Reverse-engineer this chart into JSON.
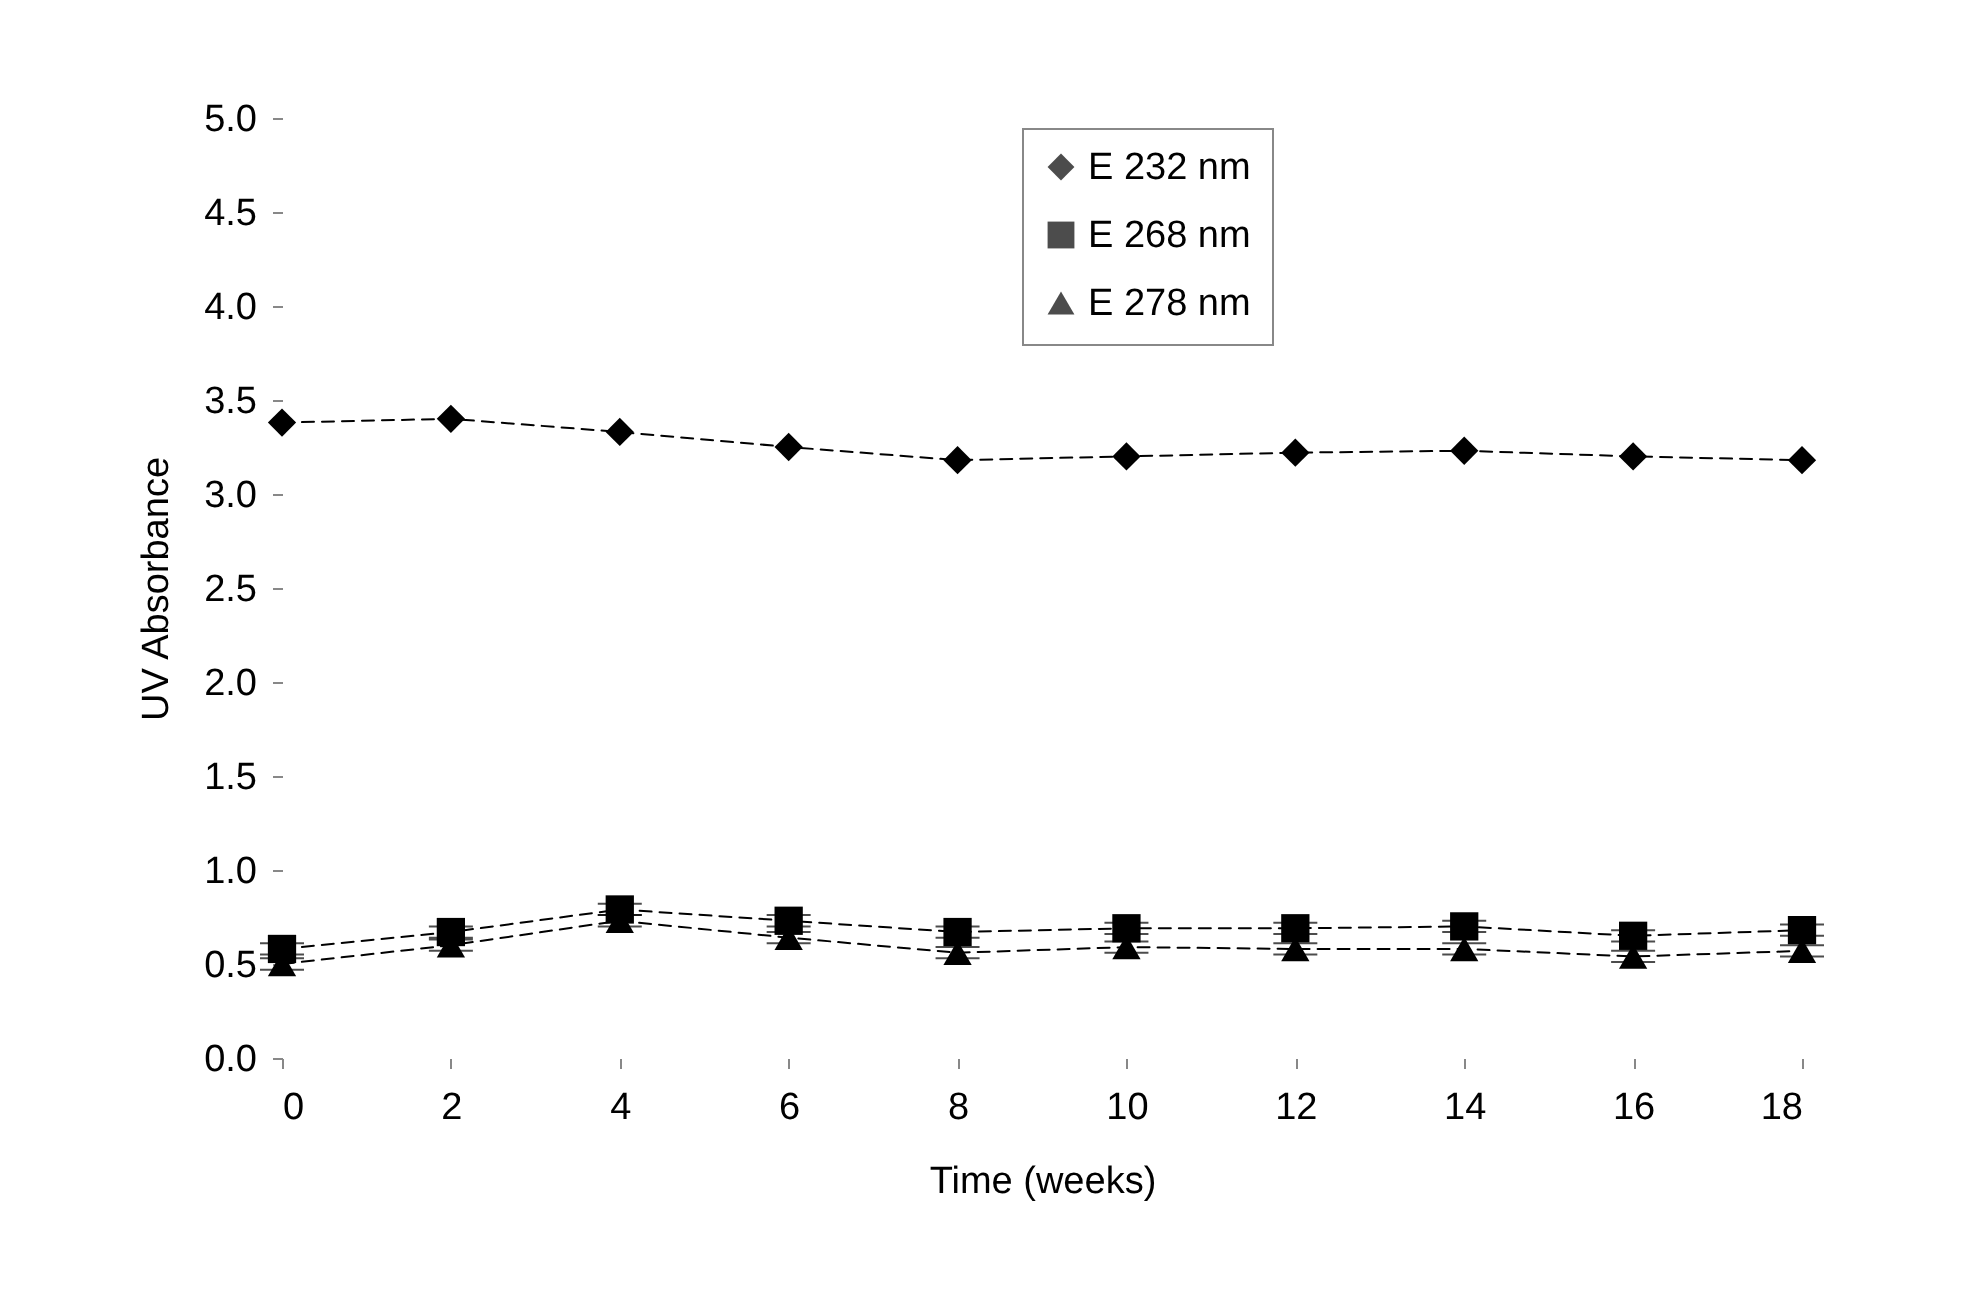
{
  "chart_data": {
    "type": "line",
    "xlabel": "Time (weeks)",
    "ylabel": "UV Absorbance",
    "x": [
      0,
      2,
      4,
      6,
      8,
      10,
      12,
      14,
      16,
      18
    ],
    "xlim": [
      0,
      18
    ],
    "xticks": [
      0,
      2,
      4,
      6,
      8,
      10,
      12,
      14,
      16,
      18
    ],
    "ylim": [
      0,
      5
    ],
    "yticks": [
      {
        "value": 0,
        "label": "0.0"
      },
      0.5,
      {
        "value": 1,
        "label": "1.0"
      },
      1.5,
      {
        "value": 2,
        "label": "2.0"
      },
      2.5,
      {
        "value": 3,
        "label": "3.0"
      },
      3.5,
      {
        "value": 4,
        "label": "4.0"
      },
      4.5,
      {
        "value": 5,
        "label": "5.0"
      }
    ],
    "grid": false,
    "legend": "top",
    "line_style": "dashed",
    "series": [
      {
        "name": "E 232 nm",
        "color": "#000000",
        "marker": "diamond",
        "values": [
          3.38,
          3.4,
          3.33,
          3.25,
          3.18,
          3.2,
          3.22,
          3.23,
          3.2,
          3.18
        ]
      },
      {
        "name": "E 268 nm",
        "color": "#000000",
        "marker": "square",
        "values": [
          0.58,
          0.67,
          0.79,
          0.73,
          0.67,
          0.69,
          0.69,
          0.7,
          0.65,
          0.68
        ],
        "errors": [
          0.03,
          0.03,
          0.03,
          0.03,
          0.03,
          0.03,
          0.03,
          0.03,
          0.03,
          0.03
        ]
      },
      {
        "name": "E 278 nm",
        "color": "#000000",
        "marker": "triangle",
        "values": [
          0.5,
          0.6,
          0.73,
          0.64,
          0.56,
          0.59,
          0.58,
          0.58,
          0.54,
          0.57
        ],
        "errors": [
          0.03,
          0.03,
          0.03,
          0.03,
          0.03,
          0.03,
          0.03,
          0.03,
          0.03,
          0.03
        ]
      }
    ]
  }
}
